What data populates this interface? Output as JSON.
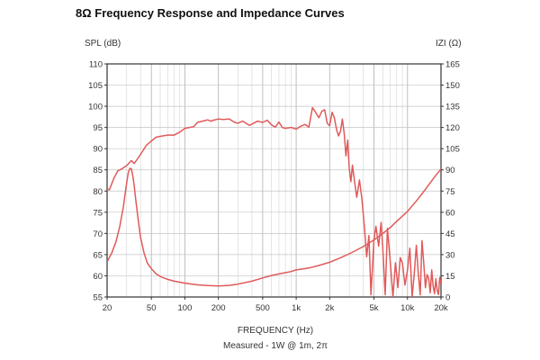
{
  "chart_data": {
    "type": "line",
    "title": "8Ω Frequency Response and Impedance Curves",
    "left_axis_label": "SPL (dB)",
    "right_axis_label": "IZI (Ω)",
    "xlabel": "FREQUENCY (Hz)",
    "note": "Measured - 1W @ 1m, 2π",
    "x_scale": "log",
    "xlim": [
      20,
      20000
    ],
    "ylim": [
      55,
      110
    ],
    "y2lim": [
      0,
      165
    ],
    "grid": true,
    "x_tick_labels": [
      {
        "value": 20,
        "label": "20"
      },
      {
        "value": 50,
        "label": "50"
      },
      {
        "value": 100,
        "label": "100"
      },
      {
        "value": 200,
        "label": "200"
      },
      {
        "value": 500,
        "label": "500"
      },
      {
        "value": 1000,
        "label": "1k"
      },
      {
        "value": 2000,
        "label": "2k"
      },
      {
        "value": 5000,
        "label": "5k"
      },
      {
        "value": 10000,
        "label": "10k"
      },
      {
        "value": 20000,
        "label": "20k"
      }
    ],
    "y_ticks": [
      "110",
      "105",
      "100",
      "95",
      "90",
      "85",
      "80",
      "75",
      "70",
      "65",
      "60",
      "55"
    ],
    "y2_ticks": [
      "165",
      "150",
      "135",
      "120",
      "105",
      "90",
      "75",
      "60",
      "45",
      "30",
      "15",
      "0"
    ],
    "line_color": "#e05a5a",
    "series": [
      {
        "axis": "left",
        "x": [
          20,
          21,
          23,
          25,
          27,
          30,
          33,
          35,
          38,
          42,
          45,
          50,
          55,
          60,
          70,
          80,
          90,
          100,
          110,
          120,
          130,
          140,
          150,
          160,
          170,
          180,
          200,
          220,
          250,
          280,
          300,
          330,
          350,
          380,
          400,
          450,
          500,
          550,
          600,
          650,
          700,
          750,
          800,
          900,
          1000,
          1100,
          1200,
          1300,
          1400,
          1500,
          1600,
          1700,
          1800,
          1900,
          2000,
          2100,
          2200,
          2300,
          2400,
          2500,
          2600,
          2700,
          2800,
          2900,
          3000,
          3100,
          3200,
          3300,
          3500,
          3700,
          3900,
          4100,
          4300,
          4500,
          4700,
          5000,
          5200,
          5500,
          5800,
          6000,
          6300,
          6600,
          7000,
          7400,
          7800,
          8200,
          8600,
          9000,
          9500,
          10000,
          10500,
          11000,
          11500,
          12000,
          12500,
          13000,
          13500,
          14000,
          14500,
          15000,
          15500,
          16000,
          16500,
          17000,
          17500,
          18000,
          18500,
          19000,
          19500,
          20000
        ],
        "y": [
          80.5,
          80.3,
          83.0,
          84.8,
          85.2,
          86.0,
          87.2,
          86.5,
          87.8,
          89.5,
          90.8,
          91.8,
          92.7,
          92.9,
          93.2,
          93.2,
          93.9,
          94.8,
          95.0,
          95.2,
          96.2,
          96.4,
          96.6,
          96.8,
          96.5,
          96.7,
          97.0,
          96.9,
          97.0,
          96.2,
          96.0,
          96.5,
          96.1,
          95.5,
          95.8,
          96.5,
          96.2,
          96.7,
          95.6,
          95.1,
          96.3,
          95.0,
          94.8,
          95.0,
          94.6,
          95.3,
          95.7,
          95.1,
          99.7,
          98.5,
          97.3,
          98.8,
          99.2,
          96.0,
          95.4,
          98.6,
          97.3,
          94.7,
          93.0,
          94.1,
          97.0,
          93.5,
          88.3,
          92.0,
          85.3,
          82.2,
          86.1,
          83.5,
          78.5,
          82.6,
          78.0,
          71.5,
          64.5,
          69.5,
          55.5,
          68.5,
          71.7,
          67.0,
          72.6,
          66.5,
          55.5,
          71.2,
          63.4,
          55.0,
          63.1,
          57.2,
          64.3,
          63.0,
          57.8,
          61.4,
          66.5,
          55.0,
          60.5,
          67.2,
          60.5,
          55.5,
          68.3,
          63.1,
          57.2,
          60.3,
          59.4,
          56.0,
          61.4,
          57.5,
          55.8,
          59.3,
          56.5,
          55.6,
          59.6,
          58.0
        ]
      },
      {
        "axis": "right",
        "x": [
          20,
          22,
          24,
          26,
          28,
          30,
          31,
          32,
          33,
          34,
          35,
          36,
          38,
          40,
          43,
          46,
          50,
          55,
          60,
          70,
          80,
          100,
          130,
          160,
          200,
          250,
          300,
          400,
          500,
          600,
          700,
          800,
          900,
          1000,
          1300,
          1600,
          2000,
          2500,
          3000,
          4000,
          5000,
          6000,
          7000,
          8000,
          10000,
          12000,
          14000,
          16000,
          18000,
          20000
        ],
        "y": [
          25,
          31,
          39,
          50,
          64,
          81,
          88,
          91,
          91,
          86,
          79,
          70,
          55,
          42,
          31,
          24,
          20,
          16.5,
          14.5,
          12.5,
          11.2,
          9.8,
          8.6,
          8.1,
          7.8,
          8.2,
          9.1,
          11.2,
          13.5,
          15.2,
          16.3,
          17.2,
          18.0,
          19.2,
          20.5,
          22.3,
          24.6,
          27.8,
          30.6,
          35.7,
          40.4,
          45.0,
          49.1,
          53.6,
          60.6,
          68.0,
          74.6,
          80.8,
          86.2,
          90.6
        ]
      }
    ]
  }
}
